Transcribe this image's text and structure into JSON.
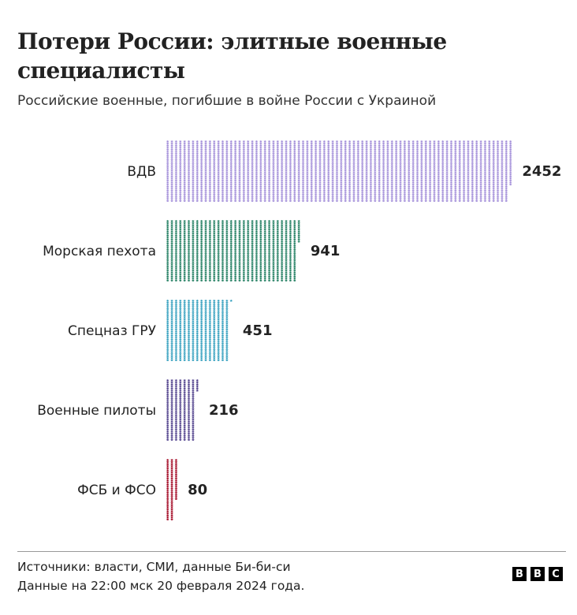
{
  "chart_data": {
    "type": "bar",
    "orientation": "horizontal",
    "unit_icon": "star-icon",
    "title": "Потери России: элитные военные специалисты",
    "subtitle": "Российские военные, погибшие в войне России с Украиной",
    "categories": [
      "ВДВ",
      "Морская пехота",
      "Спецназ ГРУ",
      "Военные пилоты",
      "ФСБ и ФСО"
    ],
    "values": [
      2452,
      941,
      451,
      216,
      80
    ],
    "value_labels": [
      "2452",
      "941",
      "451",
      "216",
      "80"
    ],
    "colors": [
      "#a08bd8",
      "#1a7a5c",
      "#2a9bbb",
      "#4a3a88",
      "#a0001c"
    ],
    "xlabel": "",
    "ylabel": "",
    "grid": false
  },
  "footer": {
    "sources": "Источники: власти, СМИ, данные Би-би-си",
    "date": "Данные на 22:00 мск 20 февраля 2024 года.",
    "logo": "BBC"
  }
}
